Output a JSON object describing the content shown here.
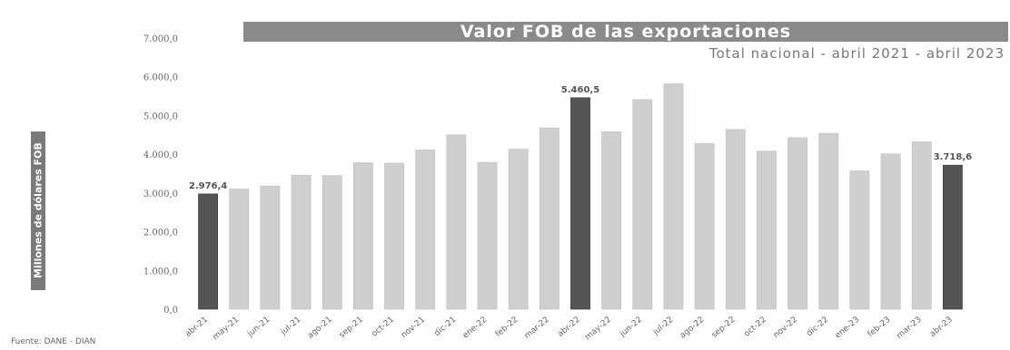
{
  "chart_data": {
    "type": "bar",
    "title": "Valor FOB de las exportaciones",
    "subtitle": "Total nacional - abril 2021 - abril 2023",
    "ylabel": "Millones de dólares FOB",
    "source": "Fuente: DANE - DIAN",
    "ylim": [
      0,
      7000
    ],
    "yticks": [
      "0,0",
      "1.000,0",
      "2.000,0",
      "3.000,0",
      "4.000,0",
      "5.000,0",
      "6.000,0",
      "7.000,0"
    ],
    "categories": [
      "abr-21",
      "may-21",
      "jun-21",
      "jul-21",
      "ago-21",
      "sep-21",
      "oct-21",
      "nov-21",
      "dic-21",
      "ene-22",
      "feb-22",
      "mar-22",
      "abr-22",
      "may-22",
      "jun-22",
      "jul-22",
      "ago-22",
      "sep-22",
      "oct-22",
      "nov-22",
      "dic-22",
      "ene-23",
      "feb-23",
      "mar-23",
      "abr-23"
    ],
    "values": [
      2976.4,
      3100,
      3180,
      3460,
      3450,
      3780,
      3770,
      4110,
      4500,
      3790,
      4130,
      4680,
      5460.5,
      4580,
      5410,
      5820,
      4280,
      4640,
      4080,
      4430,
      4540,
      3570,
      4010,
      4320,
      3718.6
    ],
    "highlighted": [
      0,
      12,
      24
    ],
    "data_labels": {
      "0": "2.976,4",
      "12": "5.460,5",
      "24": "3.718,6"
    },
    "grid": false,
    "colors": {
      "bar": "#cfcfcf",
      "highlight": "#555555",
      "banner": "#8a8a8a"
    }
  }
}
